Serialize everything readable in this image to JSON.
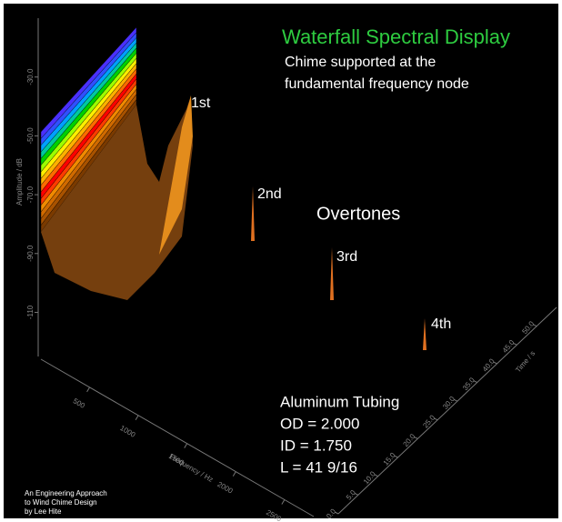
{
  "chart_data": {
    "type": "waterfall",
    "title": "Waterfall Spectral Display",
    "subtitle": [
      "Chime supported at the",
      "fundamental frequency node"
    ],
    "annotations": [
      "1st",
      "2nd",
      "3rd",
      "4th"
    ],
    "overtones_label": "Overtones",
    "specs": [
      "Aluminum Tubing",
      "OD = 2.000",
      "ID = 1.750",
      "L = 41 9/16"
    ],
    "credit": [
      "An Engineering Approach",
      "to Wind Chime Design",
      "by Lee Hite"
    ],
    "ylabel": "Amplitude / dB",
    "xlabel": "Frequency / Hz",
    "zlabel": "Time / s",
    "ylim": [
      -125,
      -10
    ],
    "yticks": [
      {
        "value": -30,
        "label": "-30.0"
      },
      {
        "value": -50,
        "label": "-50.0"
      },
      {
        "value": -70,
        "label": "-70.0"
      },
      {
        "value": -90,
        "label": "-90.0"
      },
      -110
    ],
    "xlim": [
      0,
      2800
    ],
    "xticks": [
      500,
      1000,
      1500,
      2000,
      2500
    ],
    "zlim": [
      0,
      55
    ],
    "zticks": [
      {
        "value": 0,
        "label": "0.0"
      },
      {
        "value": 5,
        "label": "5.0"
      },
      {
        "value": 10,
        "label": "10.0"
      },
      {
        "value": 15,
        "label": "15.0"
      },
      {
        "value": 20,
        "label": "20.0"
      },
      {
        "value": 25,
        "label": "25.0"
      },
      {
        "value": 30,
        "label": "30.0"
      },
      {
        "value": 35,
        "label": "35.0"
      },
      {
        "value": 40,
        "label": "40.0"
      },
      {
        "value": 45,
        "label": "45.0"
      },
      {
        "value": 50,
        "label": "50.0"
      }
    ]
  }
}
